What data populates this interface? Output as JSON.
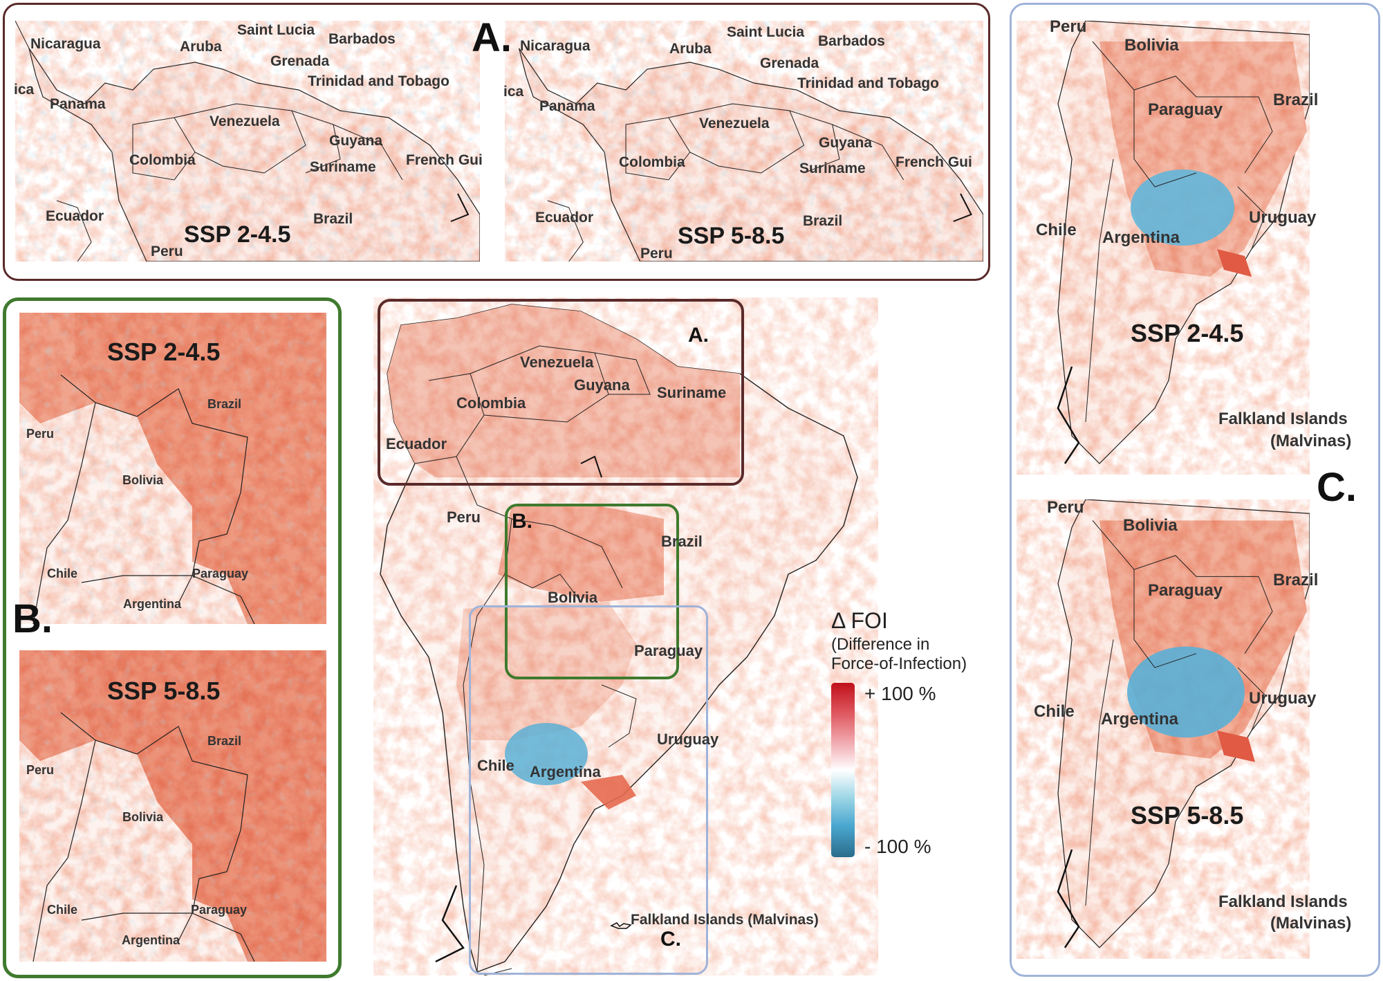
{
  "panels": {
    "A": {
      "label": "A.",
      "left_map": {
        "scenario": "SSP 2-4.5",
        "labels": [
          "Nicaragua",
          "Aruba",
          "Saint Lucia",
          "Barbados",
          "Grenada",
          "Trinidad and Tobago",
          "ica",
          "Panama",
          "Venezuela",
          "Guyana",
          "Colombia",
          "Suriname",
          "French Gui",
          "Ecuador",
          "Brazil",
          "Peru"
        ]
      },
      "right_map": {
        "scenario": "SSP 5-8.5",
        "labels": [
          "Nicaragua",
          "Aruba",
          "Saint Lucia",
          "Barbados",
          "Grenada",
          "Trinidad and Tobago",
          "ica",
          "Panama",
          "Venezuela",
          "Guyana",
          "Colombia",
          "Suriname",
          "French Gui",
          "Ecuador",
          "Brazil",
          "Peru"
        ]
      }
    },
    "B": {
      "label": "B.",
      "top_map": {
        "scenario": "SSP 2-4.5",
        "labels": [
          "Brazil",
          "Peru",
          "Bolivia",
          "Chile",
          "Paraguay",
          "Argentina"
        ]
      },
      "bottom_map": {
        "scenario": "SSP 5-8.5",
        "labels": [
          "Brazil",
          "Peru",
          "Bolivia",
          "Chile",
          "Paraguay",
          "Argentina"
        ]
      }
    },
    "C": {
      "label": "C.",
      "top_map": {
        "scenario": "SSP 2-4.5",
        "labels": [
          "Peru",
          "Bolivia",
          "Brazil",
          "Paraguay",
          "Uruguay",
          "Chile",
          "Argentina",
          "Falkland Islands",
          "(Malvinas)"
        ]
      },
      "bottom_map": {
        "scenario": "SSP 5-8.5",
        "labels": [
          "Peru",
          "Bolivia",
          "Brazil",
          "Paraguay",
          "Uruguay",
          "Chile",
          "Argentina",
          "Falkland Islands",
          "(Malvinas)"
        ]
      }
    },
    "overview": {
      "box_labels": [
        "A.",
        "B.",
        "C."
      ],
      "labels": [
        "Venezuela",
        "Guyana",
        "Suriname",
        "Colombia",
        "Ecuador",
        "Peru",
        "Brazil",
        "Bolivia",
        "Paraguay",
        "Uruguay",
        "Chile",
        "Argentina",
        "Falkland Islands (Malvinas)"
      ]
    }
  },
  "legend": {
    "title": "Δ FOI",
    "subtitle_line1": "(Difference in",
    "subtitle_line2": "Force-of-Infection)",
    "max_label": "+ 100 %",
    "min_label": "- 100 %",
    "colors": {
      "high": "#c0101a",
      "mid": "#ffffff",
      "low": "#2b6c8b"
    }
  },
  "frame_colors": {
    "A": "#5a2a2a",
    "B": "#3f7a2e",
    "C": "#9fb3d9"
  }
}
